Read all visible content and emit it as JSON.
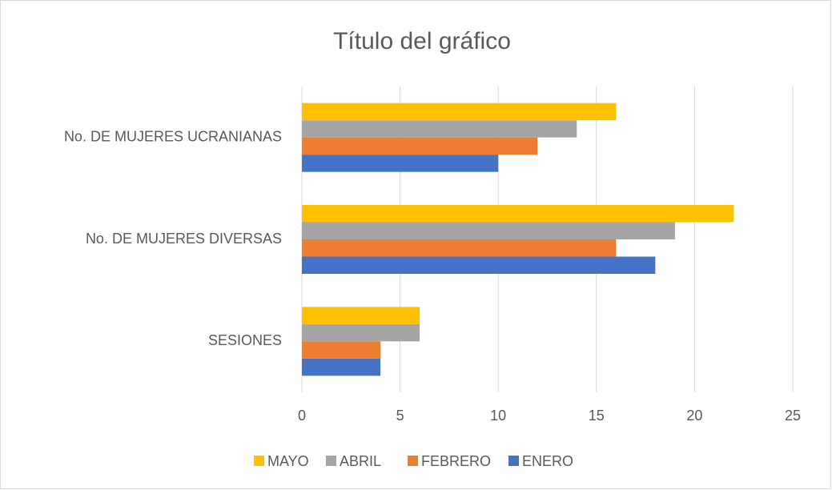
{
  "chart_data": {
    "type": "barh",
    "title": "Título del gráfico",
    "categories": [
      "No. DE MUJERES UCRANIANAS",
      "No. DE MUJERES DIVERSAS",
      "SESIONES"
    ],
    "series": [
      {
        "name": "ENERO",
        "color": "#4472c4",
        "values": [
          10,
          18,
          4
        ]
      },
      {
        "name": "FEBRERO",
        "color": "#ed7d31",
        "values": [
          12,
          16,
          4
        ]
      },
      {
        "name": "ABRIL",
        "color": "#a5a5a5",
        "values": [
          14,
          19,
          6
        ]
      },
      {
        "name": "MAYO",
        "color": "#ffc000",
        "values": [
          16,
          22,
          6
        ]
      }
    ],
    "xlim": [
      0,
      25
    ],
    "xticks": [
      0,
      5,
      10,
      15,
      20,
      25
    ],
    "grid": true,
    "legend": "bottom"
  }
}
